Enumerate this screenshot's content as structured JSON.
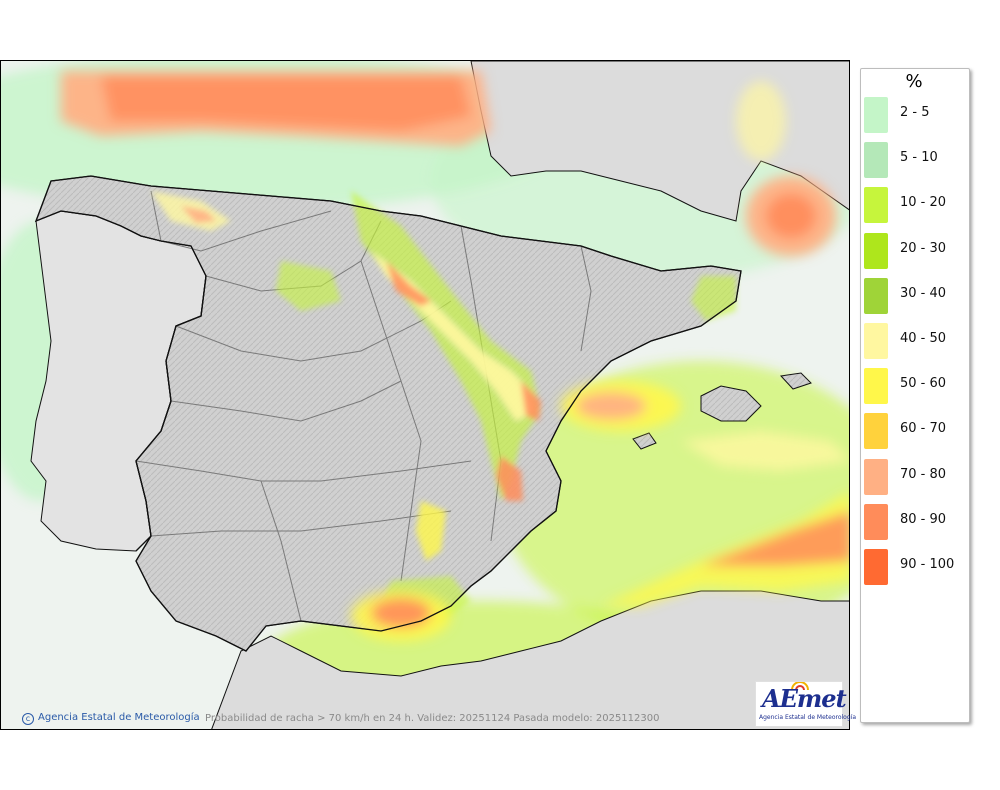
{
  "legend": {
    "unit": "%",
    "items": [
      {
        "label": "2 - 5",
        "color": "#c4f5c8"
      },
      {
        "label": "5 - 10",
        "color": "#b4e8b8"
      },
      {
        "label": "10 - 20",
        "color": "#c6f53c"
      },
      {
        "label": "20 - 30",
        "color": "#aee61c"
      },
      {
        "label": "30 - 40",
        "color": "#9fd438"
      },
      {
        "label": "40 - 50",
        "color": "#fff7a0"
      },
      {
        "label": "50 - 60",
        "color": "#fff74a"
      },
      {
        "label": "60 - 70",
        "color": "#ffd23c"
      },
      {
        "label": "70 - 80",
        "color": "#ffb084"
      },
      {
        "label": "80 - 90",
        "color": "#ff8c5a"
      },
      {
        "label": "90 - 100",
        "color": "#ff6a32"
      }
    ]
  },
  "map": {
    "colors": {
      "sea_background": "#eef3ef",
      "land": "#d2d2d2",
      "borders": "#111111",
      "regional_borders": "#7a7a7a"
    }
  },
  "footer": {
    "credit": "Agencia Estatal de Meteorología",
    "credit_icon": "copyright-icon",
    "caption": "Probabilidad de racha > 70 km/h en 24 h. Validez: 20251124 Pasada modelo: 2025112300"
  },
  "logo": {
    "text": "AEmet",
    "subtitle": "Agencia Estatal de Meteorología"
  }
}
